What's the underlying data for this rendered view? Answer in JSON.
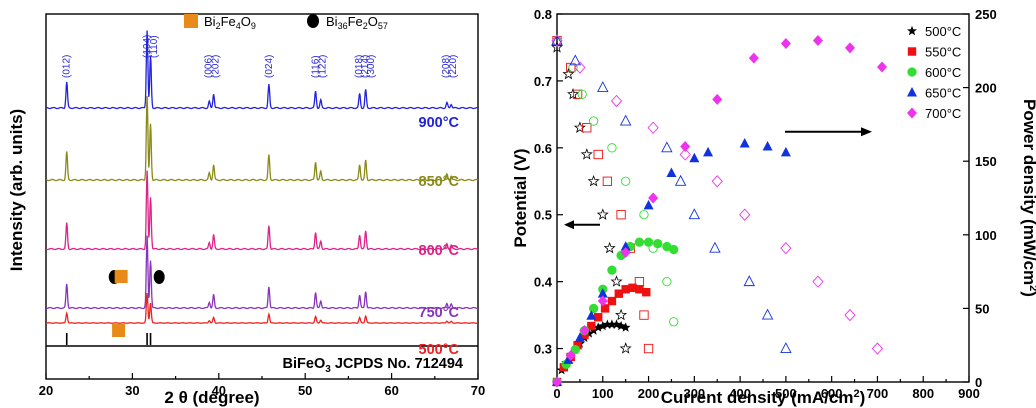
{
  "chart_data": [
    {
      "type": "line",
      "xlabel": "2 θ (degree)",
      "ylabel": "Intensity (arb. units)",
      "xlim": [
        20,
        70
      ],
      "xticks": [
        "20",
        "30",
        "40",
        "50",
        "60",
        "70"
      ],
      "legend": {
        "position": "top",
        "entries": [
          {
            "marker": "square",
            "color": "#e88a1a",
            "label": "Bi",
            "sub1": "2",
            "mid": "Fe",
            "sub2": "4",
            "end": "O",
            "sub3": "9"
          },
          {
            "marker": "circle",
            "color": "#000000",
            "label": "Bi",
            "sub1": "36",
            "mid": "Fe",
            "sub2": "2",
            "end": "O",
            "sub3": "57"
          }
        ]
      },
      "series": [
        {
          "name": "900°C",
          "color": "#2222dd"
        },
        {
          "name": "850°C",
          "color": "#8a8a18"
        },
        {
          "name": "800°C",
          "color": "#dd2288"
        },
        {
          "name": "750°C",
          "color": "#8833bb"
        },
        {
          "name": "500°C",
          "color": "#ee2222"
        }
      ],
      "temp_labels": [
        "900",
        "850",
        "800",
        "750",
        "500"
      ],
      "temp_unit": "°C",
      "peaks": [
        {
          "two_theta": 22.4,
          "height": 1.0
        },
        {
          "two_theta": 31.7,
          "height": 3.0
        },
        {
          "two_theta": 32.1,
          "height": 2.0
        },
        {
          "two_theta": 38.9,
          "height": 0.25
        },
        {
          "two_theta": 39.4,
          "height": 0.55
        },
        {
          "two_theta": 45.8,
          "height": 0.9
        },
        {
          "two_theta": 51.2,
          "height": 0.65
        },
        {
          "two_theta": 51.8,
          "height": 0.3
        },
        {
          "two_theta": 56.3,
          "height": 0.55
        },
        {
          "two_theta": 57.0,
          "height": 0.7
        },
        {
          "two_theta": 66.4,
          "height": 0.2
        },
        {
          "two_theta": 66.9,
          "height": 0.15
        }
      ],
      "hkl_labels": [
        {
          "text": "(012)",
          "two_theta": 22.4
        },
        {
          "text": "(104)",
          "two_theta": 31.7
        },
        {
          "text": "(110)",
          "two_theta": 32.5
        },
        {
          "text": "(006)",
          "two_theta": 38.8
        },
        {
          "text": "(202)",
          "two_theta": 39.6
        },
        {
          "text": "(024)",
          "two_theta": 45.8
        },
        {
          "text": "(116)",
          "two_theta": 51.2
        },
        {
          "text": "(122)",
          "two_theta": 52.0
        },
        {
          "text": "(018)",
          "two_theta": 56.2
        },
        {
          "text": "(214)",
          "two_theta": 56.9
        },
        {
          "text": "(300)",
          "two_theta": 57.6
        },
        {
          "text": "(208)",
          "two_theta": 66.3
        },
        {
          "text": "(220)",
          "two_theta": 67.1
        }
      ],
      "impurity_markers": [
        {
          "pattern": "750°C",
          "marker": "circle",
          "two_theta": 27.9
        },
        {
          "pattern": "750°C",
          "marker": "square",
          "two_theta": 28.7
        },
        {
          "pattern": "750°C",
          "marker": "circle",
          "two_theta": 33.1
        },
        {
          "pattern": "500°C",
          "marker": "square",
          "two_theta": 28.4
        }
      ],
      "reference": {
        "label": "BiFeO",
        "sub": "3",
        "rest": " JCPDS No. 712494",
        "lines": [
          22.4,
          31.7,
          32.1
        ]
      }
    },
    {
      "type": "scatter",
      "xlabel": "Current density (mA/cm",
      "xlabel_sup": "2",
      "xlabel_end": ")",
      "ylabel": "Potential (V)",
      "y2label": "Power density (mW/cm",
      "y2label_sup": "2",
      "y2label_end": ")",
      "xlim": [
        0,
        900
      ],
      "ylim": [
        0.25,
        0.8
      ],
      "y2lim": [
        0,
        250
      ],
      "xticks": [
        "0",
        "100",
        "200",
        "300",
        "400",
        "500",
        "600",
        "700",
        "800",
        "900"
      ],
      "yticks": [
        "0.3",
        "0.4",
        "0.5",
        "0.6",
        "0.7",
        "0.8"
      ],
      "y2ticks": [
        "0",
        "50",
        "100",
        "150",
        "200",
        "250"
      ],
      "legend_position": "top-right",
      "series": [
        {
          "name": "500°C",
          "marker": "star",
          "color": "#000000",
          "potential": [
            [
              0,
              0.75
            ],
            [
              25,
              0.71
            ],
            [
              35,
              0.68
            ],
            [
              50,
              0.63
            ],
            [
              65,
              0.59
            ],
            [
              80,
              0.55
            ],
            [
              100,
              0.5
            ],
            [
              115,
              0.45
            ],
            [
              130,
              0.4
            ],
            [
              140,
              0.35
            ],
            [
              150,
              0.3
            ]
          ],
          "power": [
            [
              0,
              0
            ],
            [
              10,
              8
            ],
            [
              20,
              13
            ],
            [
              30,
              18
            ],
            [
              40,
              22
            ],
            [
              50,
              26
            ],
            [
              60,
              30
            ],
            [
              70,
              33
            ],
            [
              80,
              35
            ],
            [
              90,
              37
            ],
            [
              100,
              38
            ],
            [
              110,
              39
            ],
            [
              120,
              39
            ],
            [
              130,
              39
            ],
            [
              140,
              38
            ],
            [
              150,
              37
            ]
          ]
        },
        {
          "name": "550°C",
          "marker": "square",
          "color": "#ee1111",
          "potential": [
            [
              0,
              0.76
            ],
            [
              30,
              0.72
            ],
            [
              45,
              0.68
            ],
            [
              65,
              0.63
            ],
            [
              90,
              0.59
            ],
            [
              110,
              0.55
            ],
            [
              140,
              0.5
            ],
            [
              160,
              0.45
            ],
            [
              180,
              0.4
            ],
            [
              190,
              0.35
            ],
            [
              200,
              0.3
            ]
          ],
          "power": [
            [
              0,
              0
            ],
            [
              15,
              10
            ],
            [
              30,
              17
            ],
            [
              45,
              25
            ],
            [
              60,
              32
            ],
            [
              75,
              38
            ],
            [
              90,
              44
            ],
            [
              105,
              50
            ],
            [
              120,
              55
            ],
            [
              135,
              60
            ],
            [
              150,
              63
            ],
            [
              165,
              64
            ],
            [
              180,
              63
            ],
            [
              195,
              61
            ]
          ]
        },
        {
          "name": "600°C",
          "marker": "circle",
          "color": "#33dd33",
          "potential": [
            [
              0,
              0.76
            ],
            [
              35,
              0.72
            ],
            [
              55,
              0.68
            ],
            [
              80,
              0.64
            ],
            [
              120,
              0.6
            ],
            [
              150,
              0.55
            ],
            [
              190,
              0.5
            ],
            [
              210,
              0.45
            ],
            [
              240,
              0.4
            ],
            [
              255,
              0.34
            ]
          ],
          "power": [
            [
              0,
              0
            ],
            [
              20,
              12
            ],
            [
              40,
              22
            ],
            [
              60,
              35
            ],
            [
              80,
              50
            ],
            [
              100,
              63
            ],
            [
              120,
              76
            ],
            [
              140,
              86
            ],
            [
              160,
              92
            ],
            [
              180,
              95
            ],
            [
              200,
              95
            ],
            [
              220,
              94
            ],
            [
              240,
              92
            ],
            [
              255,
              90
            ]
          ]
        },
        {
          "name": "650°C",
          "marker": "triangle",
          "color": "#1133dd",
          "potential": [
            [
              0,
              0.76
            ],
            [
              40,
              0.73
            ],
            [
              100,
              0.69
            ],
            [
              150,
              0.64
            ],
            [
              240,
              0.6
            ],
            [
              270,
              0.55
            ],
            [
              300,
              0.5
            ],
            [
              345,
              0.45
            ],
            [
              420,
              0.4
            ],
            [
              460,
              0.35
            ],
            [
              500,
              0.3
            ]
          ],
          "power": [
            [
              0,
              0
            ],
            [
              25,
              15
            ],
            [
              50,
              30
            ],
            [
              75,
              45
            ],
            [
              100,
              60
            ],
            [
              150,
              92
            ],
            [
              200,
              120
            ],
            [
              250,
              142
            ],
            [
              300,
              152
            ],
            [
              330,
              156
            ],
            [
              410,
              162
            ],
            [
              460,
              160
            ],
            [
              500,
              156
            ]
          ]
        },
        {
          "name": "700°C",
          "marker": "diamond",
          "color": "#ee33ee",
          "potential": [
            [
              0,
              0.76
            ],
            [
              50,
              0.72
            ],
            [
              130,
              0.67
            ],
            [
              210,
              0.63
            ],
            [
              280,
              0.59
            ],
            [
              350,
              0.55
            ],
            [
              410,
              0.5
            ],
            [
              500,
              0.45
            ],
            [
              570,
              0.4
            ],
            [
              640,
              0.35
            ],
            [
              700,
              0.3
            ]
          ],
          "power": [
            [
              0,
              0
            ],
            [
              30,
              18
            ],
            [
              60,
              35
            ],
            [
              100,
              55
            ],
            [
              150,
              88
            ],
            [
              210,
              125
            ],
            [
              280,
              160
            ],
            [
              350,
              192
            ],
            [
              430,
              220
            ],
            [
              500,
              230
            ],
            [
              570,
              232
            ],
            [
              640,
              227
            ],
            [
              710,
              214
            ]
          ]
        }
      ],
      "arrows": [
        {
          "direction": "left",
          "points_to": "Potential (V)"
        },
        {
          "direction": "right",
          "points_to": "Power density"
        }
      ]
    }
  ]
}
